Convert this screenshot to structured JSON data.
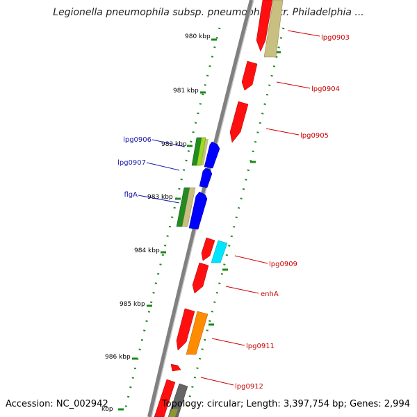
{
  "title": "Legionella pneumophila subsp. pneumophila str. Philadelphia ...",
  "footer": {
    "accession": "Accession: NC_002942",
    "topology": "Topology: circular; Length: 3,397,754 bp; Genes: 2,994"
  },
  "ticks": [
    "980 kbp",
    "981 kbp",
    "982 kbp",
    "983 kbp",
    "984 kbp",
    "985 kbp",
    "986 kbp",
    "kbp"
  ],
  "genes_forward": [
    "lpg0903",
    "lpg0904",
    "lpg0905",
    "lpg0909",
    "enhA",
    "lpg0911",
    "lpg0912"
  ],
  "genes_reverse": [
    "lpg0906",
    "lpg0907",
    "flgA"
  ],
  "colors": {
    "forward_label": "#cc0000",
    "reverse_label": "#1a1aaa",
    "backbone": "#808080",
    "tick_dots": "#228b22",
    "gene_red": "#ff0000",
    "gene_blue": "#0000ff",
    "gene_cyan": "#00e5ff",
    "gene_orange": "#ff8c00",
    "gene_khaki": "#c8bf80",
    "gene_green": "#228b22",
    "gene_lime": "#99dd22",
    "gene_gray": "#666666"
  }
}
